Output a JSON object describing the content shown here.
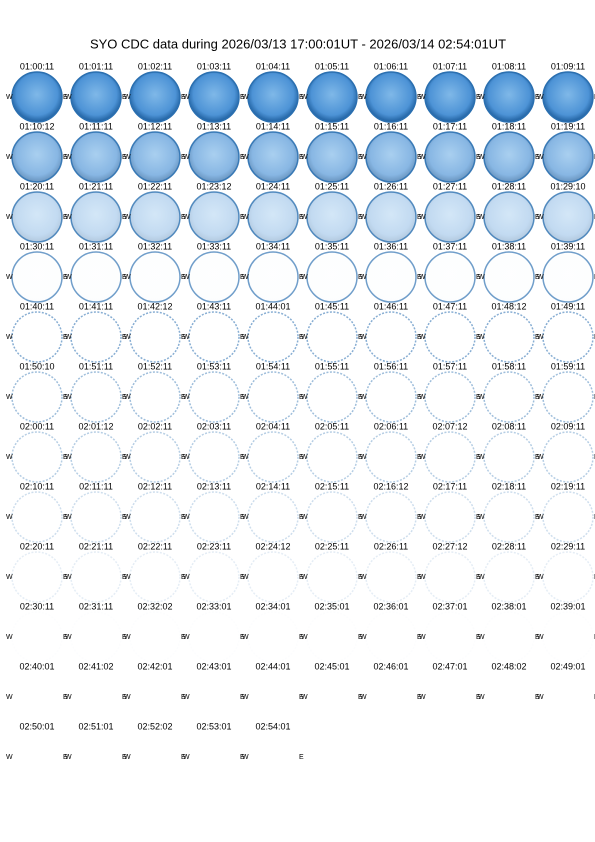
{
  "title": "SYO CDC data during 2026/03/13 17:00:01UT - 2026/03/14 02:54:01UT",
  "west_label": "W",
  "east_label": "E",
  "frames": [
    "01:00:11",
    "01:01:11",
    "01:02:11",
    "01:03:11",
    "01:04:11",
    "01:05:11",
    "01:06:11",
    "01:07:11",
    "01:08:11",
    "01:09:11",
    "01:10:12",
    "01:11:11",
    "01:12:11",
    "01:13:11",
    "01:14:11",
    "01:15:11",
    "01:16:11",
    "01:17:11",
    "01:18:11",
    "01:19:11",
    "01:20:11",
    "01:21:11",
    "01:22:11",
    "01:23:12",
    "01:24:11",
    "01:25:11",
    "01:26:11",
    "01:27:11",
    "01:28:11",
    "01:29:10",
    "01:30:11",
    "01:31:11",
    "01:32:11",
    "01:33:11",
    "01:34:11",
    "01:35:11",
    "01:36:11",
    "01:37:11",
    "01:38:11",
    "01:39:11",
    "01:40:11",
    "01:41:11",
    "01:42:12",
    "01:43:11",
    "01:44:01",
    "01:45:11",
    "01:46:11",
    "01:47:11",
    "01:48:12",
    "01:49:11",
    "01:50:10",
    "01:51:11",
    "01:52:11",
    "01:53:11",
    "01:54:11",
    "01:55:11",
    "01:56:11",
    "01:57:11",
    "01:58:11",
    "01:59:11",
    "02:00:11",
    "02:01:12",
    "02:02:11",
    "02:03:11",
    "02:04:11",
    "02:05:11",
    "02:06:11",
    "02:07:12",
    "02:08:11",
    "02:09:11",
    "02:10:11",
    "02:11:11",
    "02:12:11",
    "02:13:11",
    "02:14:11",
    "02:15:11",
    "02:16:12",
    "02:17:11",
    "02:18:11",
    "02:19:11",
    "02:20:11",
    "02:21:11",
    "02:22:11",
    "02:23:11",
    "02:24:12",
    "02:25:11",
    "02:26:11",
    "02:27:12",
    "02:28:11",
    "02:29:11",
    "02:30:11",
    "02:31:11",
    "02:32:02",
    "02:33:01",
    "02:34:01",
    "02:35:01",
    "02:36:01",
    "02:37:01",
    "02:38:01",
    "02:39:01",
    "02:40:01",
    "02:41:02",
    "02:42:01",
    "02:43:01",
    "02:44:01",
    "02:45:01",
    "02:46:01",
    "02:47:01",
    "02:48:02",
    "02:49:01",
    "02:50:01",
    "02:51:01",
    "02:52:02",
    "02:53:01",
    "02:54:01"
  ]
}
